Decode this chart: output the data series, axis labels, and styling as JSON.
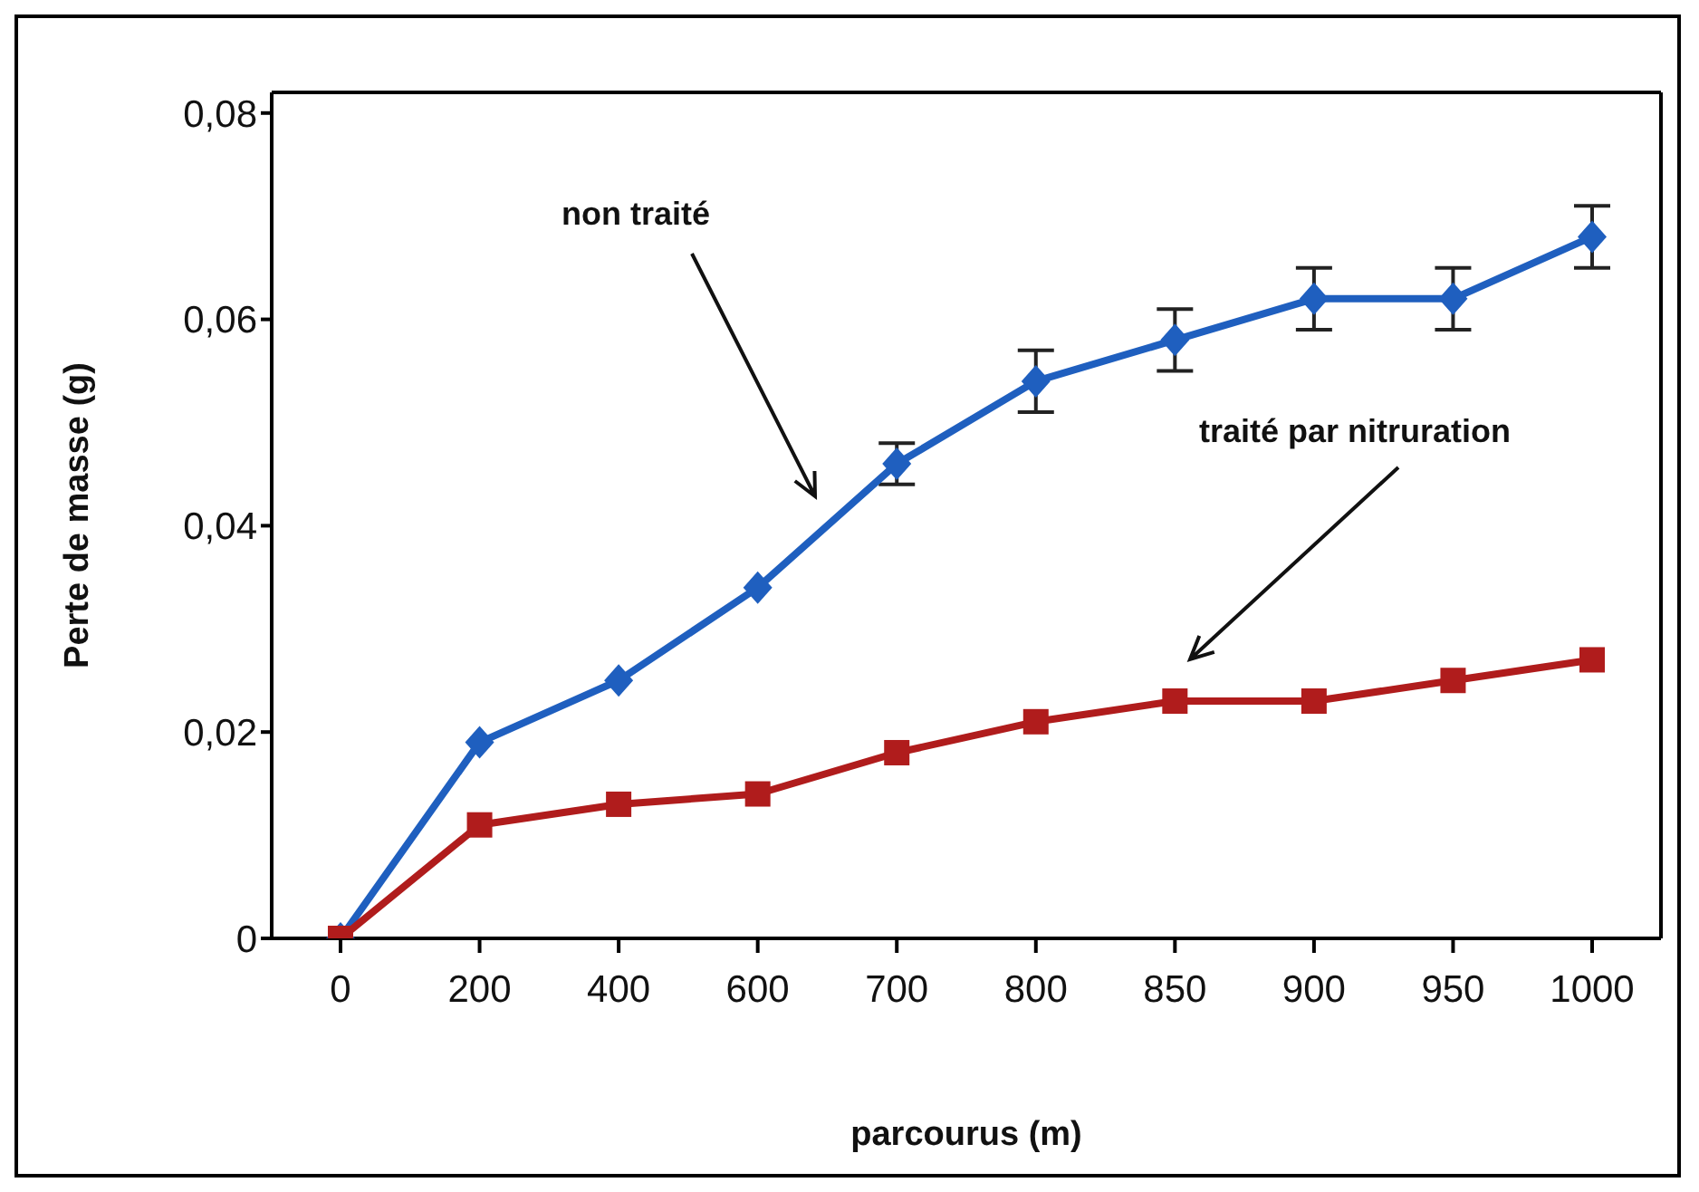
{
  "chart_data": {
    "type": "line",
    "xlabel": "parcourus (m)",
    "ylabel": "Perte de masse (g)",
    "categories": [
      "0",
      "200",
      "400",
      "600",
      "700",
      "800",
      "850",
      "900",
      "950",
      "1000"
    ],
    "ylim": [
      0,
      0.082
    ],
    "yticks": [
      0,
      {
        "value": 0.02,
        "label": "0,02"
      },
      {
        "value": 0.04,
        "label": "0,04"
      },
      {
        "value": 0.06,
        "label": "0,06"
      },
      {
        "value": 0.08,
        "label": "0,08"
      }
    ],
    "grid": false,
    "legend": false,
    "line_style": "solid",
    "annotations": [
      "non traité",
      "traité par nitruration"
    ],
    "series": [
      {
        "color": "#1f5fbf",
        "marker": "diamond",
        "values": [
          0,
          0.019,
          0.025,
          0.034,
          0.046,
          0.054,
          0.058,
          0.062,
          0.062,
          0.068
        ],
        "errors": [
          null,
          null,
          null,
          null,
          0.002,
          0.003,
          0.003,
          0.003,
          0.003,
          0.003
        ]
      },
      {
        "color": "#b01c1c",
        "marker": "square",
        "values": [
          0,
          0.011,
          0.013,
          0.014,
          0.018,
          0.021,
          0.023,
          0.023,
          0.025,
          0.027
        ]
      }
    ]
  }
}
